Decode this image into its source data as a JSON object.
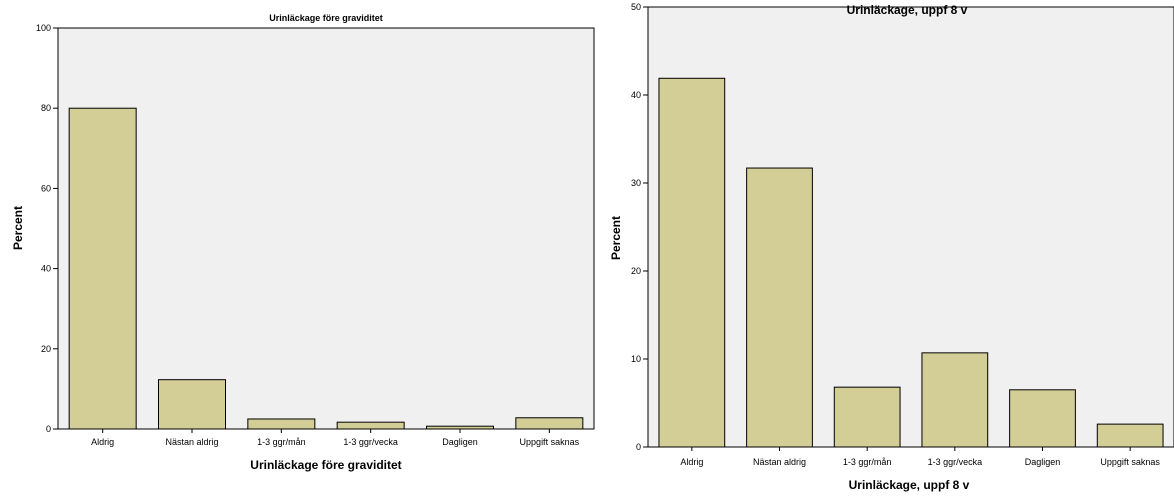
{
  "chart_data": [
    {
      "type": "bar",
      "title": "Urinläckage före graviditet",
      "xlabel": "Urinläckage före graviditet",
      "ylabel": "Percent",
      "categories": [
        "Aldrig",
        "Nästan aldrig",
        "1-3 ggr/mån",
        "1-3 ggr/vecka",
        "Dagligen",
        "Uppgift saknas"
      ],
      "values": [
        80.0,
        12.3,
        2.5,
        1.7,
        0.7,
        2.8
      ],
      "ylim": [
        0,
        100
      ],
      "yticks": [
        "0",
        "20",
        "40",
        "60",
        "80",
        "100"
      ],
      "grid": false,
      "bar_color": "#d3cd96",
      "plot_background": "#f0f0f0"
    },
    {
      "type": "bar",
      "title": "Urinläckage, uppf 8 v",
      "xlabel": "Urinläckage, uppf 8 v",
      "ylabel": "Percent",
      "categories": [
        "Aldrig",
        "Nästan aldrig",
        "1-3 ggr/mån",
        "1-3 ggr/vecka",
        "Dagligen",
        "Uppgift saknas"
      ],
      "values": [
        41.9,
        31.7,
        6.8,
        10.7,
        6.5,
        2.6
      ],
      "ylim": [
        0,
        50
      ],
      "yticks": [
        "0",
        "10",
        "20",
        "30",
        "40",
        "50"
      ],
      "grid": false,
      "bar_color": "#d3cd96",
      "plot_background": "#f0f0f0"
    }
  ]
}
